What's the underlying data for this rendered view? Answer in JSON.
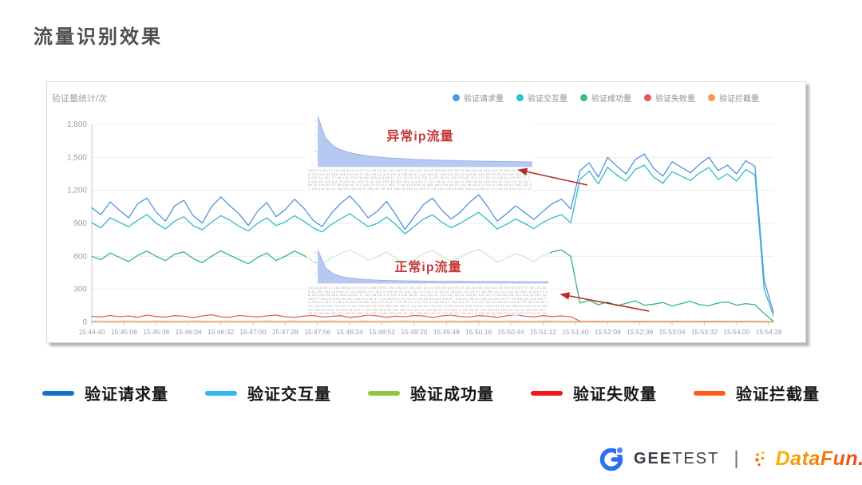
{
  "page": {
    "title": "流量识别效果"
  },
  "panel": {
    "y_axis_title": "验证量统计/次",
    "top_legend": [
      {
        "label": "验证请求量",
        "color": "#4d9be0"
      },
      {
        "label": "验证交互量",
        "color": "#2cc0d4"
      },
      {
        "label": "验证成功量",
        "color": "#3dbd7d"
      },
      {
        "label": "验证失败量",
        "color": "#e05c5c"
      },
      {
        "label": "验证拦截量",
        "color": "#f59a54"
      }
    ]
  },
  "chart_data": {
    "type": "line",
    "title": "",
    "ylabel": "验证量统计/次",
    "ylim": [
      0,
      1800
    ],
    "grid": true,
    "y_ticks": [
      "0",
      "300",
      "600",
      "900",
      "1,200",
      "1,500",
      "1,800"
    ],
    "x_ticks": [
      "15:44:40",
      "15:45:08",
      "15:45:36",
      "15:46:04",
      "15:46:32",
      "15:47:00",
      "15:47:28",
      "15:47:56",
      "15:48:24",
      "15:48:52",
      "15:49:20",
      "15:49:48",
      "15:50:16",
      "15:50:44",
      "15:51:12",
      "15:51:40",
      "15:52:08",
      "15:52:36",
      "15:53:04",
      "15:53:32",
      "15:54:00",
      "15:54:28"
    ],
    "series": [
      {
        "name": "验证请求量",
        "color": "#4f93dc",
        "values": [
          1040,
          980,
          1095,
          1020,
          950,
          1080,
          1130,
          1000,
          920,
          1060,
          1110,
          970,
          905,
          1050,
          1140,
          1060,
          985,
          880,
          1010,
          1090,
          960,
          1025,
          1120,
          1040,
          930,
          870,
          990,
          1080,
          1150,
          1060,
          950,
          1010,
          1100,
          980,
          845,
          960,
          1070,
          1130,
          1020,
          940,
          1000,
          1090,
          1160,
          1050,
          920,
          985,
          1060,
          1000,
          935,
          1010,
          1080,
          1120,
          1030,
          1380,
          1450,
          1320,
          1500,
          1420,
          1350,
          1480,
          1530,
          1400,
          1330,
          1460,
          1410,
          1360,
          1440,
          1500,
          1380,
          1430,
          1350,
          1470,
          1420,
          380,
          90
        ]
      },
      {
        "name": "验证交互量",
        "color": "#2fb8cc",
        "values": [
          905,
          860,
          950,
          910,
          868,
          930,
          980,
          900,
          850,
          920,
          960,
          880,
          842,
          910,
          970,
          930,
          872,
          832,
          900,
          950,
          880,
          912,
          970,
          920,
          860,
          822,
          890,
          940,
          988,
          930,
          870,
          900,
          958,
          890,
          805,
          870,
          940,
          978,
          910,
          860,
          900,
          950,
          1000,
          930,
          850,
          890,
          940,
          900,
          852,
          910,
          950,
          980,
          905,
          1300,
          1375,
          1260,
          1410,
          1340,
          1285,
          1390,
          1430,
          1320,
          1265,
          1370,
          1330,
          1290,
          1360,
          1408,
          1300,
          1350,
          1285,
          1390,
          1340,
          300,
          60
        ]
      },
      {
        "name": "验证成功量",
        "color": "#33b873",
        "values": [
          600,
          570,
          630,
          590,
          552,
          610,
          648,
          600,
          562,
          620,
          640,
          580,
          542,
          600,
          650,
          610,
          570,
          532,
          590,
          630,
          562,
          600,
          648,
          610,
          556,
          526,
          586,
          625,
          660,
          615,
          565,
          595,
          640,
          585,
          512,
          565,
          625,
          655,
          600,
          556,
          590,
          635,
          662,
          610,
          546,
          580,
          625,
          595,
          550,
          605,
          640,
          658,
          600,
          175,
          200,
          160,
          185,
          150,
          172,
          195,
          155,
          165,
          180,
          148,
          170,
          190,
          160,
          152,
          175,
          185,
          155,
          170,
          160,
          80,
          10
        ]
      },
      {
        "name": "验证失败量",
        "color": "#e06060",
        "values": [
          55,
          48,
          62,
          50,
          58,
          45,
          65,
          52,
          47,
          60,
          55,
          42,
          58,
          68,
          50,
          45,
          62,
          55,
          48,
          58,
          65,
          50,
          44,
          56,
          62,
          48,
          54,
          60,
          45,
          52,
          66,
          58,
          46,
          55,
          50,
          62,
          57,
          44,
          58,
          65,
          52,
          48,
          60,
          55,
          45,
          58,
          70,
          55,
          48,
          60,
          52,
          58,
          50,
          10,
          8,
          9,
          7,
          10,
          8,
          6,
          9,
          8,
          7,
          10,
          8,
          9,
          7,
          8,
          10,
          8,
          7,
          9,
          8,
          6,
          4
        ]
      },
      {
        "name": "验证拦截量",
        "color": "#f5a35c",
        "values": [
          8,
          10,
          7,
          9,
          11,
          8,
          6,
          10,
          9,
          7,
          8,
          11,
          9,
          6,
          8,
          10,
          7,
          9,
          8,
          11,
          6,
          9,
          10,
          8,
          7,
          9,
          11,
          8,
          6,
          10,
          9,
          7,
          8,
          10,
          11,
          8,
          7,
          9,
          6,
          10,
          8,
          9,
          11,
          7,
          8,
          10,
          9,
          6,
          8,
          9,
          10,
          8,
          7,
          8,
          9,
          7,
          8,
          10,
          8,
          9,
          7,
          8,
          9,
          8,
          7,
          9,
          8,
          10,
          8,
          7,
          9,
          8,
          8,
          7,
          5
        ]
      }
    ]
  },
  "insets": [
    {
      "label": "异常ip流量",
      "type": "area",
      "color": "#aec3ee",
      "values": [
        100,
        58,
        42,
        34,
        29,
        25.5,
        23,
        21,
        19.5,
        18,
        17,
        16.2,
        15.4,
        14.7,
        14.1,
        13.6,
        13.1,
        12.7,
        12.3,
        11.9,
        11.6,
        11.3,
        11,
        10.7,
        10.5,
        10.2,
        10,
        9.8,
        9.6,
        9.4
      ]
    },
    {
      "label": "正常ip流量",
      "type": "area",
      "color": "#aec3ee",
      "values": [
        100,
        45,
        28,
        20,
        16,
        13,
        11,
        9.8,
        8.9,
        8.2,
        7.6,
        7.1,
        6.7,
        6.4,
        6.1,
        5.9,
        5.7,
        5.5,
        5.4,
        5.2,
        5.1,
        5,
        4.9,
        4.8,
        4.7,
        4.6,
        4.55,
        4.5,
        4.45,
        4.4
      ]
    }
  ],
  "ip_label_texture": "183.214.69.17 112.98.63.174 221.4.195.38 61.140.232.87 119.137.52.41 183.62.120.99 27.38.251.66 113.118.76.203 14.153.77.48 120.229.35.182 ",
  "bottom_legend": [
    {
      "label": "验证请求量",
      "color": "#1472c4"
    },
    {
      "label": "验证交互量",
      "color": "#30b4f2"
    },
    {
      "label": "验证成功量",
      "color": "#8dc63f"
    },
    {
      "label": "验证失败量",
      "color": "#f11717"
    },
    {
      "label": "验证拦截量",
      "color": "#ff5c1c"
    }
  ],
  "footer": {
    "geetest_bold": "GEE",
    "geetest_light": "TEST",
    "divider": "|",
    "datafun_text": "DataFun."
  }
}
